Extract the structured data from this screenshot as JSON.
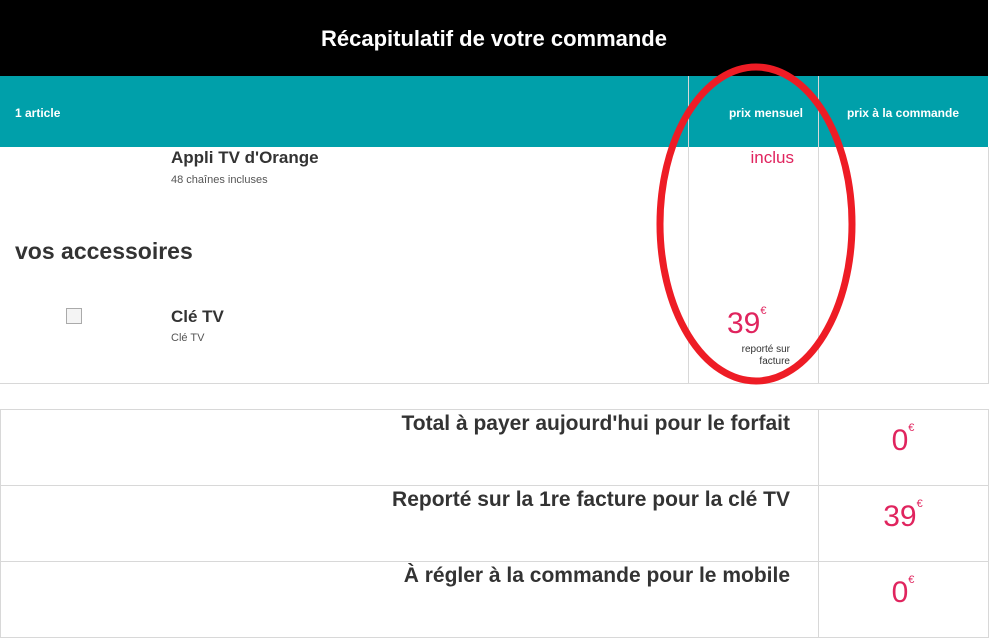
{
  "header": {
    "title": "Récapitulatif de votre commande"
  },
  "table_header": {
    "articles": "1 article",
    "monthly_price": "prix mensuel",
    "order_price": "prix à la commande"
  },
  "items": [
    {
      "name": "Appli TV d'Orange",
      "description": "48 chaînes incluses",
      "monthly": "inclus"
    },
    {
      "name": "Clé TV",
      "description": "Clé TV",
      "monthly": "39",
      "currency": "€",
      "note": "reporté sur facture"
    }
  ],
  "accessories_title": "vos accessoires",
  "summary": [
    {
      "label": "Total à payer aujourd'hui pour le forfait",
      "value": "0",
      "currency": "€"
    },
    {
      "label": "Reporté sur la 1re facture pour la clé TV",
      "value": "39",
      "currency": "€"
    },
    {
      "label": "À régler à la commande pour le mobile",
      "value": "0",
      "currency": "€"
    }
  ],
  "colors": {
    "header": "#000000",
    "table_header": "#00a0aa",
    "price": "#e0245e",
    "annotation": "#ee1c25"
  }
}
